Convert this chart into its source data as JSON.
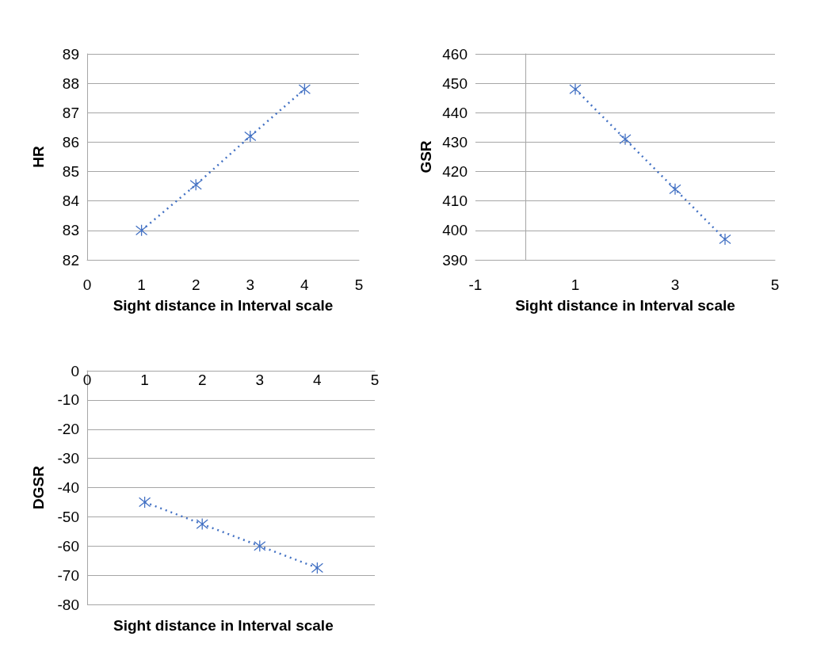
{
  "chart_data": [
    {
      "type": "line",
      "xlabel": "Sight distance in Interval scale",
      "ylabel": "HR",
      "x": [
        1,
        2,
        3,
        4
      ],
      "values": [
        83,
        84.55,
        86.2,
        87.8
      ],
      "color": "#4472c4",
      "xlim": [
        0,
        5
      ],
      "xticks": [
        0,
        1,
        2,
        3,
        4,
        5
      ],
      "ylim": [
        82,
        89
      ],
      "yticks": [
        82,
        83,
        84,
        85,
        86,
        87,
        88,
        89
      ],
      "grid": "y",
      "marker": "cross",
      "line_style": "dotted"
    },
    {
      "type": "line",
      "xlabel": "Sight distance in Interval scale",
      "ylabel": "GSR",
      "x": [
        1,
        2,
        3,
        4
      ],
      "values": [
        448,
        431,
        414,
        397
      ],
      "color": "#4472c4",
      "xlim": [
        -1,
        5
      ],
      "xticks": [
        -1,
        1,
        3,
        5
      ],
      "ylim": [
        390,
        460
      ],
      "yticks": [
        390,
        400,
        410,
        420,
        430,
        440,
        450,
        460
      ],
      "grid": "y",
      "marker": "cross",
      "line_style": "dotted"
    },
    {
      "type": "line",
      "xlabel": "Sight distance in Interval scale",
      "ylabel": "DGSR",
      "x": [
        1,
        2,
        3,
        4
      ],
      "values": [
        -45,
        -52.5,
        -60,
        -67.5
      ],
      "color": "#4472c4",
      "xlim": [
        0,
        5
      ],
      "xticks": [
        0,
        1,
        2,
        3,
        4,
        5
      ],
      "ylim": [
        -80,
        0
      ],
      "yticks": [
        -80,
        -70,
        -60,
        -50,
        -40,
        -30,
        -20,
        -10,
        0
      ],
      "grid": "y",
      "marker": "cross",
      "line_style": "dotted"
    }
  ]
}
